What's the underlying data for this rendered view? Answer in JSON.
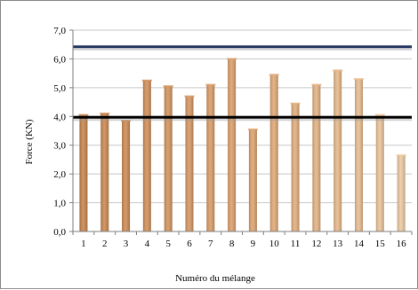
{
  "chart_data": {
    "type": "bar",
    "title": "",
    "xlabel": "Numéro du mélange",
    "ylabel": "Force (KN)",
    "categories": [
      "1",
      "2",
      "3",
      "4",
      "5",
      "6",
      "7",
      "8",
      "9",
      "10",
      "11",
      "12",
      "13",
      "14",
      "15",
      "16"
    ],
    "values": [
      4.05,
      4.1,
      3.85,
      5.25,
      5.05,
      4.7,
      5.1,
      6.0,
      3.55,
      5.45,
      4.45,
      5.1,
      5.6,
      5.3,
      4.05,
      2.65
    ],
    "ylim": [
      0,
      7
    ],
    "yticks": [
      "0,0",
      "1,0",
      "2,0",
      "3,0",
      "4,0",
      "5,0",
      "6,0",
      "7,0"
    ],
    "grid": true,
    "reference_lines": [
      {
        "value": 6.42,
        "color": "#24365f"
      },
      {
        "value": 3.97,
        "color": "#000000"
      }
    ],
    "bar_colors": [
      "#c9874e",
      "#cc8a52",
      "#cf8d56",
      "#d2915b",
      "#d4955f",
      "#d79964",
      "#da9d69",
      "#dca16d",
      "#dfa672",
      "#e1aa78",
      "#e3af7e",
      "#e5b484",
      "#e7b98b",
      "#e9be92",
      "#ebc49a",
      "#edcaa2"
    ]
  }
}
